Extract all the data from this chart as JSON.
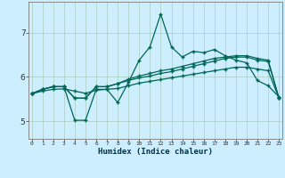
{
  "title": "",
  "xlabel": "Humidex (Indice chaleur)",
  "ylabel": "",
  "bg_color": "#cceeff",
  "grid_color": "#aaccbb",
  "line_color": "#006655",
  "x": [
    0,
    1,
    2,
    3,
    4,
    5,
    6,
    7,
    8,
    9,
    10,
    11,
    12,
    13,
    14,
    15,
    16,
    17,
    18,
    19,
    20,
    21,
    22,
    23
  ],
  "xtick_labels": [
    "0",
    "1",
    "2",
    "3",
    "4",
    "5",
    "6",
    "7",
    "8",
    "9",
    "10",
    "11",
    "12",
    "13",
    "14",
    "15",
    "16",
    "17",
    "18",
    "19",
    "20",
    "21",
    "22",
    "23"
  ],
  "yticks": [
    5,
    6,
    7
  ],
  "ylim": [
    4.6,
    7.7
  ],
  "xlim": [
    -0.3,
    23.3
  ],
  "series": [
    [
      5.62,
      5.72,
      5.78,
      5.78,
      5.02,
      5.02,
      5.72,
      5.72,
      5.42,
      5.88,
      6.38,
      6.68,
      7.42,
      6.68,
      6.45,
      6.58,
      6.55,
      6.62,
      6.48,
      6.38,
      6.32,
      5.92,
      5.8,
      5.55
    ],
    [
      5.62,
      5.72,
      5.78,
      5.78,
      5.52,
      5.52,
      5.78,
      5.78,
      5.85,
      5.92,
      5.98,
      6.02,
      6.08,
      6.12,
      6.18,
      6.24,
      6.3,
      6.36,
      6.42,
      6.45,
      6.45,
      6.38,
      6.35,
      5.52
    ],
    [
      5.62,
      5.72,
      5.78,
      5.78,
      5.52,
      5.52,
      5.78,
      5.78,
      5.85,
      5.95,
      6.02,
      6.08,
      6.14,
      6.18,
      6.24,
      6.3,
      6.36,
      6.42,
      6.45,
      6.48,
      6.48,
      6.42,
      6.38,
      5.52
    ],
    [
      5.62,
      5.68,
      5.72,
      5.73,
      5.68,
      5.63,
      5.7,
      5.72,
      5.74,
      5.8,
      5.86,
      5.9,
      5.94,
      5.98,
      6.02,
      6.06,
      6.1,
      6.14,
      6.18,
      6.22,
      6.22,
      6.18,
      6.14,
      5.52
    ]
  ],
  "marker": "+",
  "markersize": 3.5,
  "linewidth": 0.9
}
